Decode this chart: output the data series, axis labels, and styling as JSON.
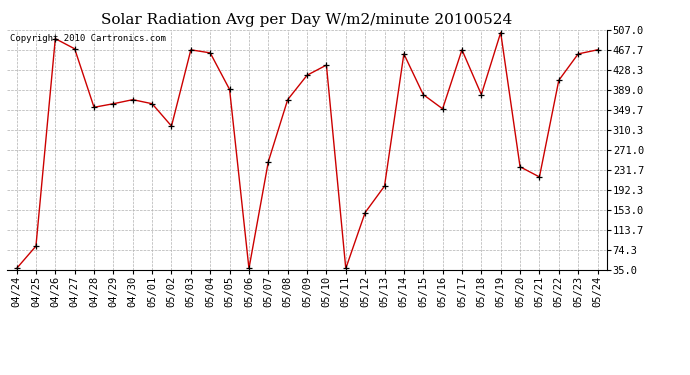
{
  "title": "Solar Radiation Avg per Day W/m2/minute 20100524",
  "copyright": "Copyright 2010 Cartronics.com",
  "x_labels": [
    "04/24",
    "04/25",
    "04/26",
    "04/27",
    "04/28",
    "04/29",
    "04/30",
    "05/01",
    "05/02",
    "05/03",
    "05/04",
    "05/05",
    "05/06",
    "05/07",
    "05/08",
    "05/09",
    "05/10",
    "05/11",
    "05/12",
    "05/13",
    "05/14",
    "05/15",
    "05/16",
    "05/17",
    "05/18",
    "05/19",
    "05/20",
    "05/21",
    "05/22",
    "05/23",
    "05/24"
  ],
  "y_values": [
    38.0,
    82.0,
    490.0,
    470.0,
    355.0,
    362.0,
    370.0,
    362.0,
    318.0,
    468.0,
    462.0,
    390.0,
    38.0,
    248.0,
    370.0,
    418.0,
    438.0,
    38.0,
    148.0,
    200.0,
    460.0,
    380.0,
    352.0,
    468.0,
    380.0,
    502.0,
    238.0,
    218.0,
    408.0,
    460.0,
    468.0
  ],
  "y_ticks": [
    35.0,
    74.3,
    113.7,
    153.0,
    192.3,
    231.7,
    271.0,
    310.3,
    349.7,
    389.0,
    428.3,
    467.7,
    507.0
  ],
  "line_color": "#cc0000",
  "marker_color": "#000000",
  "bg_color": "#ffffff",
  "grid_color": "#b0b0b0",
  "title_fontsize": 11,
  "tick_fontsize": 7.5,
  "ylim": [
    35.0,
    507.0
  ]
}
